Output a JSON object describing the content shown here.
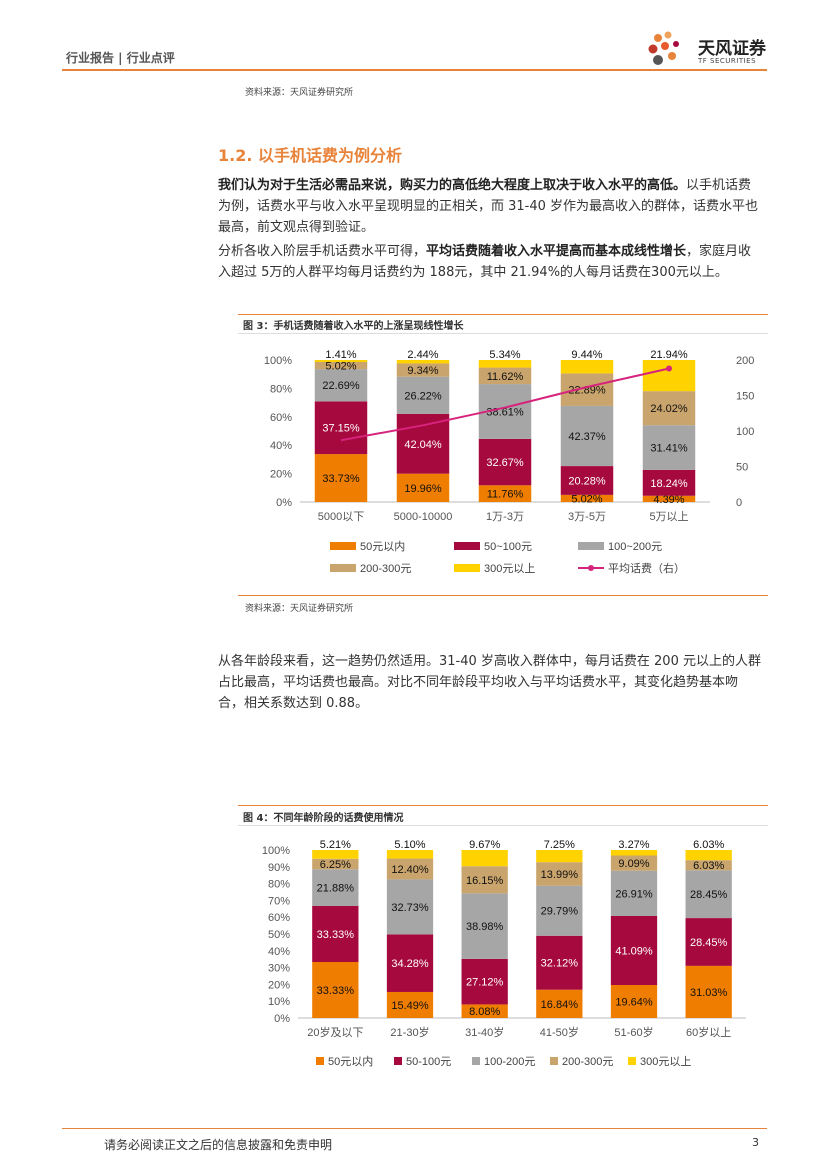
{
  "header": {
    "breadcrumb": "行业报告 | 行业点评",
    "logo_cn": "天风证券",
    "logo_en": "TF SECURITIES"
  },
  "source_top": "资料来源：天风证券研究所",
  "section": {
    "title": "1.2. 以手机话费为例分析"
  },
  "para1": {
    "bold": "我们认为对于生活必需品来说，购买力的高低绝大程度上取决于收入水平的高低。",
    "rest": "以手机话费为例，话费水平与收入水平呈现明显的正相关，而 31-40 岁作为最高收入的群体，话费水平也最高，前文观点得到验证。"
  },
  "para2": {
    "pre": "分析各收入阶层手机话费水平可得，",
    "bold": "平均话费随着收入水平提高而基本成线性增长",
    "rest": "，家庭月收入超过 5万的人群平均每月话费约为 188元，其中 21.94%的人每月话费在300元以上。"
  },
  "fig3": {
    "title": "图 3：手机话费随着收入水平的上涨呈现线性增长",
    "source": "资料来源：天风证券研究所"
  },
  "para3": "从各年龄段来看，这一趋势仍然适用。31-40 岁高收入群体中，每月话费在 200 元以上的人群占比最高，平均话费也最高。对比不同年龄段平均收入与平均话费水平，其变化趋势基本吻合，相关系数达到 0.88。",
  "fig4": {
    "title": "图 4：不同年龄阶段的话费使用情况"
  },
  "footer": {
    "disclaimer": "请务必阅读正文之后的信息披露和免责申明",
    "page": "3"
  },
  "chart_data": [
    {
      "type": "bar",
      "stacked": true,
      "categories": [
        "5000以下",
        "5000-10000",
        "1万-3万",
        "3万-5万",
        "5万以上"
      ],
      "series": [
        {
          "name": "50元以内",
          "color": "#ef7d00",
          "values": [
            33.73,
            19.96,
            11.76,
            5.02,
            4.39
          ]
        },
        {
          "name": "50~100元",
          "color": "#a6093d",
          "values": [
            37.15,
            42.04,
            32.67,
            20.28,
            18.24
          ]
        },
        {
          "name": "100~200元",
          "color": "#a6a6a6",
          "values": [
            22.69,
            26.22,
            38.61,
            42.37,
            31.41
          ]
        },
        {
          "name": "200-300元",
          "color": "#c9a46c",
          "values": [
            5.02,
            9.34,
            11.62,
            22.89,
            24.02
          ]
        },
        {
          "name": "300元以上",
          "color": "#ffd200",
          "values": [
            1.41,
            2.44,
            5.34,
            9.44,
            21.94
          ]
        }
      ],
      "line": {
        "name": "平均话费（右）",
        "color": "#d6247d",
        "values": [
          87,
          108,
          133,
          162,
          188
        ]
      },
      "yticks": [
        "0%",
        "20%",
        "40%",
        "60%",
        "80%",
        "100%"
      ],
      "y2ticks": [
        "0",
        "50",
        "100",
        "150",
        "200"
      ],
      "ylim": [
        0,
        100
      ],
      "y2lim": [
        0,
        200
      ],
      "legend": "bottom"
    },
    {
      "type": "bar",
      "stacked": true,
      "categories": [
        "20岁及以下",
        "21-30岁",
        "31-40岁",
        "41-50岁",
        "51-60岁",
        "60岁以上"
      ],
      "series": [
        {
          "name": "50元以内",
          "color": "#ef7d00",
          "values": [
            33.33,
            15.49,
            8.08,
            16.84,
            19.64,
            31.03
          ]
        },
        {
          "name": "50-100元",
          "color": "#a6093d",
          "values": [
            33.33,
            34.28,
            27.12,
            32.12,
            41.09,
            28.45
          ]
        },
        {
          "name": "100-200元",
          "color": "#a6a6a6",
          "values": [
            21.88,
            32.73,
            38.98,
            29.79,
            26.91,
            28.45
          ]
        },
        {
          "name": "200-300元",
          "color": "#c9a46c",
          "values": [
            6.25,
            12.4,
            16.15,
            13.99,
            9.09,
            6.03
          ]
        },
        {
          "name": "300元以上",
          "color": "#ffd200",
          "values": [
            5.21,
            5.1,
            9.67,
            7.25,
            3.27,
            6.03
          ]
        }
      ],
      "yticks": [
        "0%",
        "10%",
        "20%",
        "30%",
        "40%",
        "50%",
        "60%",
        "70%",
        "80%",
        "90%",
        "100%"
      ],
      "ylim": [
        0,
        100
      ],
      "legend": "bottom"
    }
  ]
}
